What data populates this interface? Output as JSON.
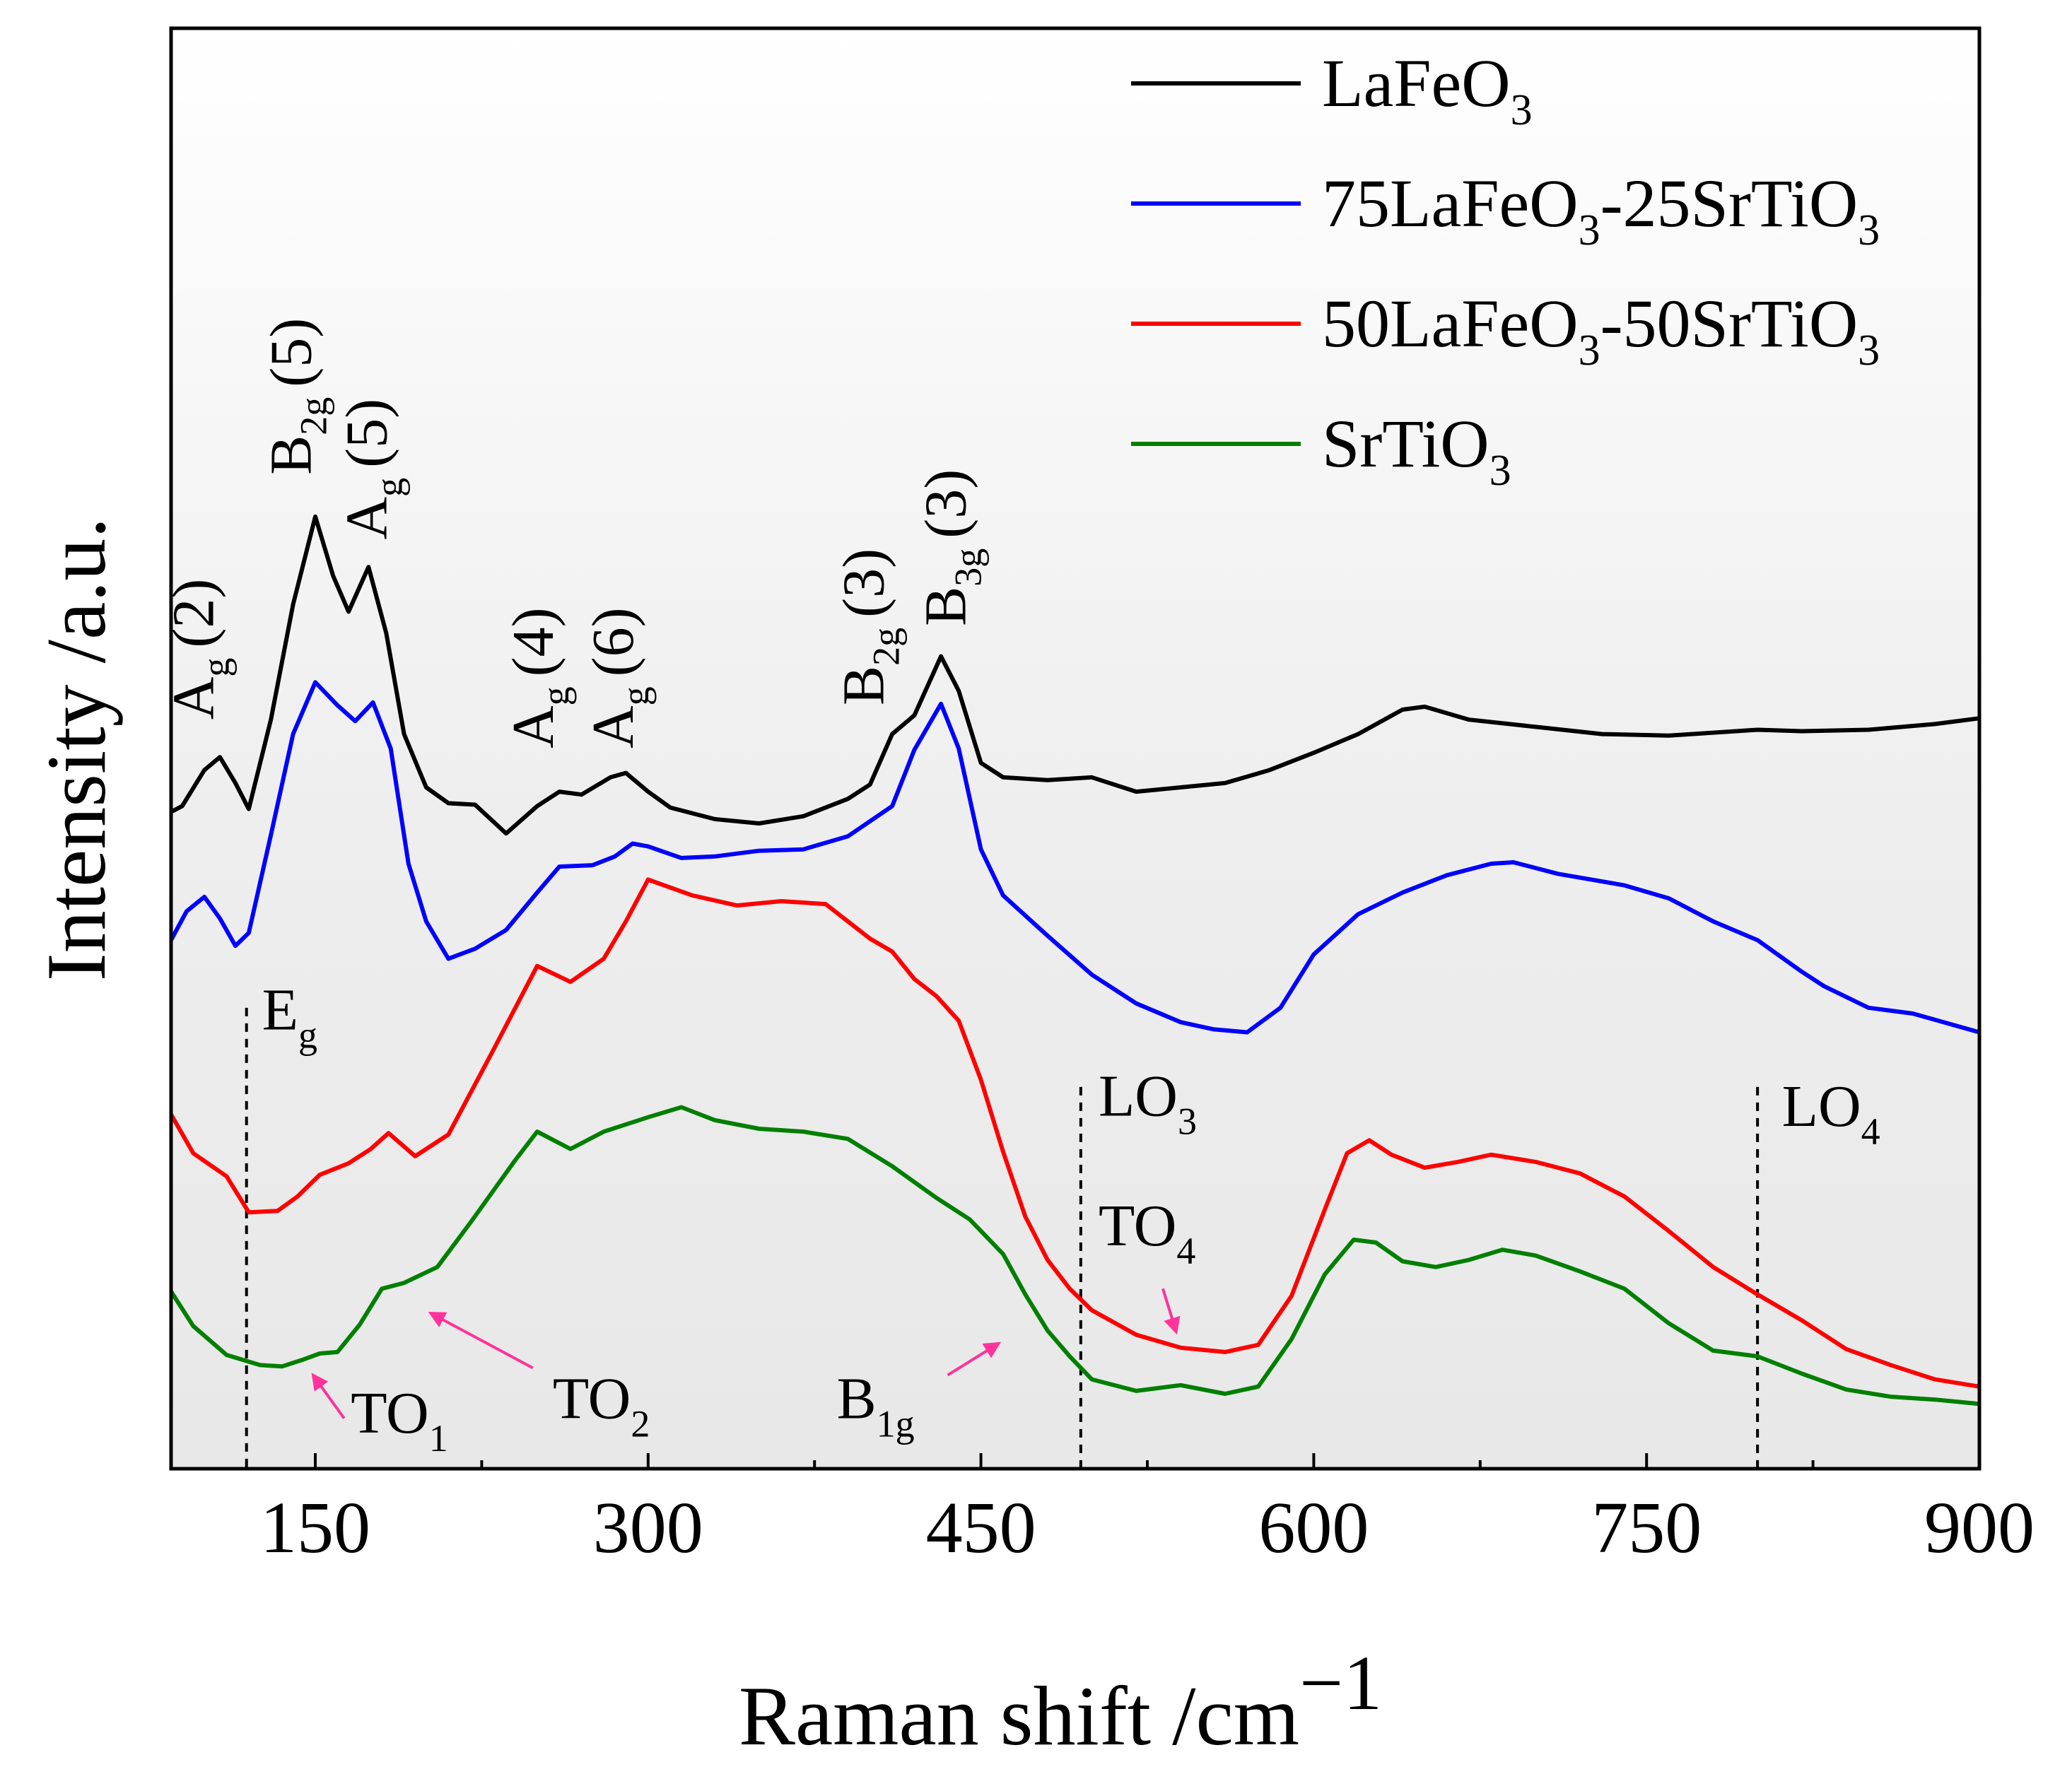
{
  "chart_data": {
    "type": "line",
    "title": "",
    "xlabel": "Raman shift /cm",
    "xlabel_sup": "−1",
    "ylabel": "Intensity /a.u.",
    "xlim": [
      85,
      900
    ],
    "ylim": [
      0,
      100
    ],
    "grid": false,
    "legend_position": "top-right",
    "x_ticks": [
      "150",
      "300",
      "450",
      "600",
      "750",
      "900"
    ],
    "x_tick_values": [
      150,
      300,
      450,
      600,
      750,
      900
    ],
    "series": [
      {
        "name": "LaFeO3",
        "legend": {
          "a": "LaFeO",
          "b": "3",
          "c": "",
          "d": "",
          "e": ""
        },
        "color": "#000000",
        "points": [
          [
            85,
            45.6
          ],
          [
            90,
            46.0
          ],
          [
            100,
            48.5
          ],
          [
            107,
            49.4
          ],
          [
            114,
            47.6
          ],
          [
            120,
            45.8
          ],
          [
            130,
            52
          ],
          [
            140,
            60
          ],
          [
            150,
            66.1
          ],
          [
            158,
            62
          ],
          [
            165,
            59.5
          ],
          [
            174,
            62.6
          ],
          [
            182,
            58
          ],
          [
            190,
            51
          ],
          [
            200,
            47.3
          ],
          [
            210,
            46.2
          ],
          [
            222,
            46.1
          ],
          [
            236,
            44.1
          ],
          [
            250,
            46
          ],
          [
            260,
            47
          ],
          [
            270,
            46.8
          ],
          [
            283,
            48
          ],
          [
            290,
            48.3
          ],
          [
            300,
            47
          ],
          [
            310,
            45.9
          ],
          [
            330,
            45.1
          ],
          [
            350,
            44.8
          ],
          [
            370,
            45.3
          ],
          [
            390,
            46.5
          ],
          [
            400,
            47.5
          ],
          [
            410,
            51
          ],
          [
            420,
            52.3
          ],
          [
            432,
            56.4
          ],
          [
            440,
            54
          ],
          [
            450,
            49
          ],
          [
            460,
            48
          ],
          [
            480,
            47.8
          ],
          [
            500,
            48.0
          ],
          [
            520,
            47
          ],
          [
            540,
            47.3
          ],
          [
            560,
            47.6
          ],
          [
            580,
            48.5
          ],
          [
            600,
            49.7
          ],
          [
            620,
            51
          ],
          [
            640,
            52.7
          ],
          [
            650,
            52.9
          ],
          [
            670,
            52
          ],
          [
            700,
            51.5
          ],
          [
            730,
            51
          ],
          [
            760,
            50.9
          ],
          [
            780,
            51.1
          ],
          [
            800,
            51.3
          ],
          [
            820,
            51.2
          ],
          [
            850,
            51.3
          ],
          [
            880,
            51.7
          ],
          [
            900,
            52.1
          ]
        ]
      },
      {
        "name": "75LaFeO3-25SrTiO3",
        "legend": {
          "a": "75LaFeO",
          "b": "3",
          "c": "-25SrTiO",
          "d": "3",
          "e": ""
        },
        "color": "#0000ff",
        "points": [
          [
            85,
            36.7
          ],
          [
            92,
            38.7
          ],
          [
            100,
            39.7
          ],
          [
            107,
            38.2
          ],
          [
            114,
            36.3
          ],
          [
            120,
            37.2
          ],
          [
            130,
            44
          ],
          [
            140,
            51
          ],
          [
            150,
            54.6
          ],
          [
            160,
            53
          ],
          [
            168,
            51.9
          ],
          [
            176,
            53.2
          ],
          [
            184,
            50
          ],
          [
            192,
            42
          ],
          [
            200,
            38
          ],
          [
            210,
            35.4
          ],
          [
            222,
            36.1
          ],
          [
            236,
            37.4
          ],
          [
            250,
            40
          ],
          [
            260,
            41.8
          ],
          [
            275,
            41.9
          ],
          [
            285,
            42.5
          ],
          [
            293,
            43.4
          ],
          [
            300,
            43.2
          ],
          [
            315,
            42.4
          ],
          [
            330,
            42.5
          ],
          [
            350,
            42.9
          ],
          [
            370,
            43
          ],
          [
            390,
            43.9
          ],
          [
            410,
            46
          ],
          [
            420,
            49.9
          ],
          [
            432,
            53.1
          ],
          [
            440,
            50
          ],
          [
            450,
            43
          ],
          [
            460,
            39.8
          ],
          [
            480,
            37
          ],
          [
            500,
            34.3
          ],
          [
            520,
            32.3
          ],
          [
            540,
            31
          ],
          [
            555,
            30.5
          ],
          [
            570,
            30.3
          ],
          [
            585,
            32
          ],
          [
            600,
            35.7
          ],
          [
            620,
            38.5
          ],
          [
            640,
            40
          ],
          [
            660,
            41.2
          ],
          [
            680,
            42
          ],
          [
            690,
            42.1
          ],
          [
            710,
            41.3
          ],
          [
            740,
            40.5
          ],
          [
            760,
            39.6
          ],
          [
            780,
            38
          ],
          [
            800,
            36.7
          ],
          [
            820,
            34.5
          ],
          [
            830,
            33.5
          ],
          [
            850,
            32
          ],
          [
            870,
            31.6
          ],
          [
            900,
            30.3
          ]
        ]
      },
      {
        "name": "50LaFeO3-50SrTiO3",
        "legend": {
          "a": "50LaFeO",
          "b": "3",
          "c": "-50SrTiO",
          "d": "3",
          "e": ""
        },
        "color": "#ff0000",
        "points": [
          [
            85,
            24.6
          ],
          [
            95,
            21.9
          ],
          [
            110,
            20.3
          ],
          [
            120,
            17.8
          ],
          [
            133,
            17.9
          ],
          [
            142,
            18.9
          ],
          [
            152,
            20.4
          ],
          [
            165,
            21.2
          ],
          [
            175,
            22.2
          ],
          [
            183,
            23.3
          ],
          [
            195,
            21.7
          ],
          [
            210,
            23.2
          ],
          [
            230,
            29
          ],
          [
            250,
            34.9
          ],
          [
            265,
            33.8
          ],
          [
            280,
            35.4
          ],
          [
            290,
            38
          ],
          [
            300,
            40.9
          ],
          [
            320,
            39.8
          ],
          [
            340,
            39.1
          ],
          [
            360,
            39.4
          ],
          [
            380,
            39.2
          ],
          [
            400,
            36.8
          ],
          [
            410,
            35.9
          ],
          [
            420,
            34
          ],
          [
            430,
            32.8
          ],
          [
            440,
            31.1
          ],
          [
            450,
            27
          ],
          [
            460,
            22
          ],
          [
            470,
            17.5
          ],
          [
            480,
            14.5
          ],
          [
            490,
            12.5
          ],
          [
            500,
            11
          ],
          [
            520,
            9.3
          ],
          [
            540,
            8.4
          ],
          [
            560,
            8.1
          ],
          [
            575,
            8.6
          ],
          [
            590,
            12
          ],
          [
            605,
            18
          ],
          [
            615,
            21.9
          ],
          [
            625,
            22.8
          ],
          [
            635,
            21.8
          ],
          [
            650,
            20.9
          ],
          [
            665,
            21.3
          ],
          [
            680,
            21.8
          ],
          [
            700,
            21.3
          ],
          [
            720,
            20.5
          ],
          [
            740,
            18.9
          ],
          [
            760,
            16.5
          ],
          [
            780,
            14
          ],
          [
            800,
            12.1
          ],
          [
            820,
            10.3
          ],
          [
            840,
            8.3
          ],
          [
            860,
            7.2
          ],
          [
            880,
            6.2
          ],
          [
            900,
            5.7
          ]
        ]
      },
      {
        "name": "SrTiO3",
        "legend": {
          "a": "SrTiO",
          "b": "3",
          "c": "",
          "d": "",
          "e": ""
        },
        "color": "#007f00",
        "points": [
          [
            85,
            12.3
          ],
          [
            95,
            9.9
          ],
          [
            110,
            7.9
          ],
          [
            125,
            7.2
          ],
          [
            135,
            7.1
          ],
          [
            145,
            7.6
          ],
          [
            152,
            8.0
          ],
          [
            160,
            8.1
          ],
          [
            170,
            10
          ],
          [
            180,
            12.5
          ],
          [
            190,
            12.9
          ],
          [
            205,
            14
          ],
          [
            220,
            17.1
          ],
          [
            240,
            21.4
          ],
          [
            250,
            23.4
          ],
          [
            265,
            22.2
          ],
          [
            280,
            23.4
          ],
          [
            300,
            24.4
          ],
          [
            315,
            25.1
          ],
          [
            330,
            24.2
          ],
          [
            350,
            23.6
          ],
          [
            370,
            23.4
          ],
          [
            390,
            22.9
          ],
          [
            410,
            21
          ],
          [
            430,
            18.8
          ],
          [
            445,
            17.3
          ],
          [
            460,
            14.9
          ],
          [
            470,
            12.1
          ],
          [
            480,
            9.6
          ],
          [
            490,
            7.8
          ],
          [
            500,
            6.2
          ],
          [
            520,
            5.4
          ],
          [
            540,
            5.8
          ],
          [
            560,
            5.2
          ],
          [
            575,
            5.7
          ],
          [
            590,
            9
          ],
          [
            605,
            13.5
          ],
          [
            618,
            15.9
          ],
          [
            628,
            15.7
          ],
          [
            640,
            14.4
          ],
          [
            655,
            14.0
          ],
          [
            670,
            14.5
          ],
          [
            685,
            15.2
          ],
          [
            700,
            14.8
          ],
          [
            720,
            13.7
          ],
          [
            740,
            12.5
          ],
          [
            760,
            10.1
          ],
          [
            780,
            8.2
          ],
          [
            800,
            7.8
          ],
          [
            820,
            6.6
          ],
          [
            840,
            5.5
          ],
          [
            860,
            5.0
          ],
          [
            880,
            4.8
          ],
          [
            900,
            4.5
          ]
        ]
      }
    ],
    "peak_labels": [
      {
        "main": "A",
        "sub": "g",
        "tail": "(2)",
        "x": 104,
        "y": 52
      },
      {
        "main": "B",
        "sub": "2g",
        "tail": "(5)",
        "x": 148,
        "y": 69
      },
      {
        "main": "A",
        "sub": "g",
        "tail": "(5)",
        "x": 182,
        "y": 64.5
      },
      {
        "main": "A",
        "sub": "g",
        "tail": "(4)",
        "x": 257,
        "y": 50
      },
      {
        "main": "A",
        "sub": "g",
        "tail": "(6)",
        "x": 293,
        "y": 50
      },
      {
        "main": "B",
        "sub": "2g",
        "tail": "(3)",
        "x": 406,
        "y": 53
      },
      {
        "main": "B",
        "sub": "3g",
        "tail": "(3)",
        "x": 443,
        "y": 58.5
      }
    ],
    "annotations": [
      {
        "main": "E",
        "sub": "g",
        "x": 126,
        "y": 30.5
      },
      {
        "main": "LO",
        "sub": "3",
        "x": 503,
        "y": 24.5
      },
      {
        "main": "TO",
        "sub": "4",
        "x": 503,
        "y": 15.5
      },
      {
        "main": "LO",
        "sub": "4",
        "x": 811,
        "y": 23.8
      },
      {
        "main": "TO",
        "sub": "1",
        "x": 166,
        "y": 2.5
      },
      {
        "main": "TO",
        "sub": "2",
        "x": 257,
        "y": 3.5
      },
      {
        "main": "B",
        "sub": "1g",
        "x": 385,
        "y": 3.5
      }
    ],
    "reference_lines": [
      {
        "name": "Eg",
        "x": 119,
        "y_top": 32
      },
      {
        "name": "LO3",
        "x": 495,
        "y_top": 26.5
      },
      {
        "name": "LO4",
        "x": 800,
        "y_top": 26.5
      }
    ],
    "arrows": [
      {
        "name": "TO1",
        "from": [
          163,
          3.5
        ],
        "to": [
          149,
          6.5
        ]
      },
      {
        "name": "TO2",
        "from": [
          248,
          7.0
        ],
        "to": [
          202,
          10.8
        ]
      },
      {
        "name": "B1g",
        "from": [
          435,
          6.5
        ],
        "to": [
          458,
          8.7
        ]
      },
      {
        "name": "TO4",
        "from": [
          532,
          12.5
        ],
        "to": [
          538,
          9.5
        ]
      }
    ],
    "arrow_color": "#ff3399",
    "reference_line_color": "#000000",
    "background_color": "#ebebeb"
  }
}
